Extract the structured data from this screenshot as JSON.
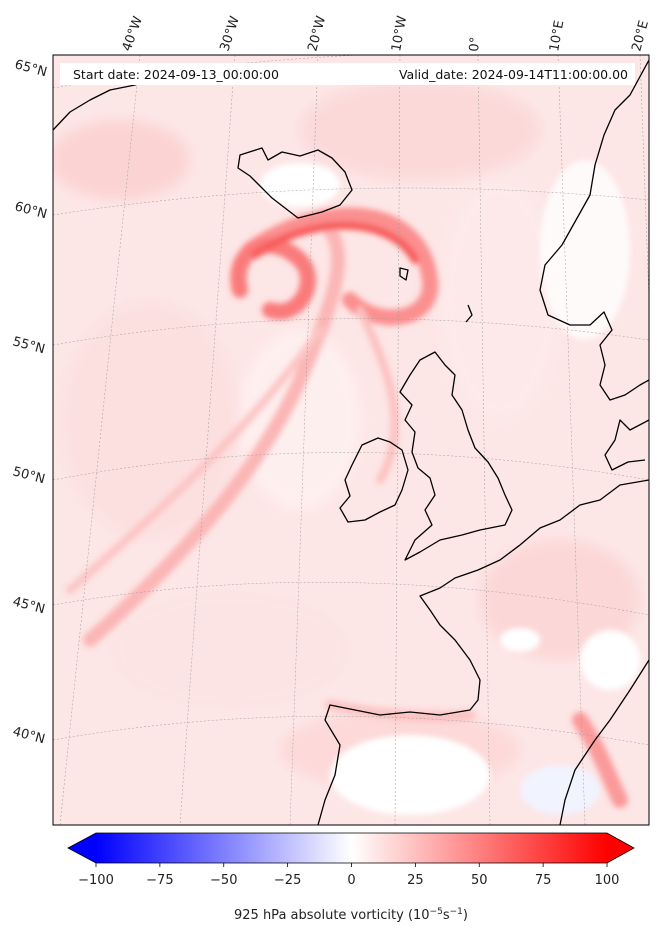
{
  "header": {
    "start_date": "Start date: 2024-09-13_00:00:00",
    "valid_date": "Valid_date: 2024-09-14T11:00:00.00"
  },
  "longitude_labels": [
    "40°W",
    "30°W",
    "20°W",
    "10°W",
    "0°",
    "10°E",
    "20°E"
  ],
  "latitude_labels": [
    "65°N",
    "60°N",
    "55°N",
    "50°N",
    "45°N",
    "40°N"
  ],
  "colorbar": {
    "label": "925 hPa absolute vorticity (10",
    "label_exp": "−5",
    "label_mid": "s",
    "label_exp2": "−1",
    "label_end": ")",
    "min": -100,
    "max": 100,
    "ticks": [
      "−100",
      "−75",
      "−50",
      "−25",
      "0",
      "25",
      "50",
      "75",
      "100"
    ],
    "colormap": "bwr",
    "extend": "both"
  },
  "colors": {
    "negative": "#0000ff",
    "neutral": "#ffffff",
    "positive": "#ff0000",
    "coastline": "#000000"
  }
}
